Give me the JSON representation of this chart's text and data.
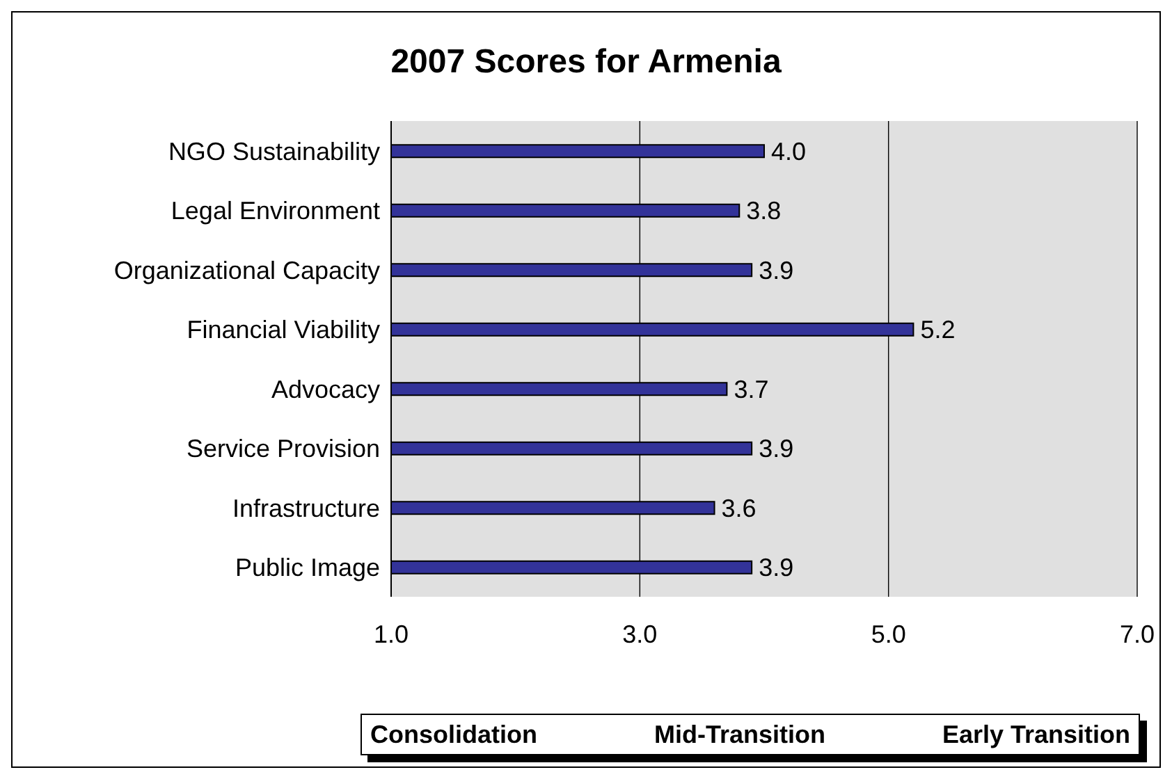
{
  "chart_data": {
    "type": "bar",
    "orientation": "horizontal",
    "title": "2007 Scores for Armenia",
    "categories": [
      "NGO Sustainability",
      "Legal Environment",
      "Organizational Capacity",
      "Financial Viability",
      "Advocacy",
      "Service Provision",
      "Infrastructure",
      "Public Image"
    ],
    "values": [
      4.0,
      3.8,
      3.9,
      5.2,
      3.7,
      3.9,
      3.6,
      3.9
    ],
    "value_labels": [
      "4.0",
      "3.8",
      "3.9",
      "5.2",
      "3.7",
      "3.9",
      "3.6",
      "3.9"
    ],
    "color": "#333399",
    "xlim": [
      1,
      7
    ],
    "xticks": [
      {
        "value": 1,
        "label": "1.0"
      },
      {
        "value": 3,
        "label": "3.0"
      },
      {
        "value": 5,
        "label": "5.0"
      },
      {
        "value": 7,
        "label": "7.0"
      }
    ],
    "grid": "x",
    "annotations": [
      "Consolidation",
      "Mid-Transition",
      "Early Transition"
    ]
  }
}
